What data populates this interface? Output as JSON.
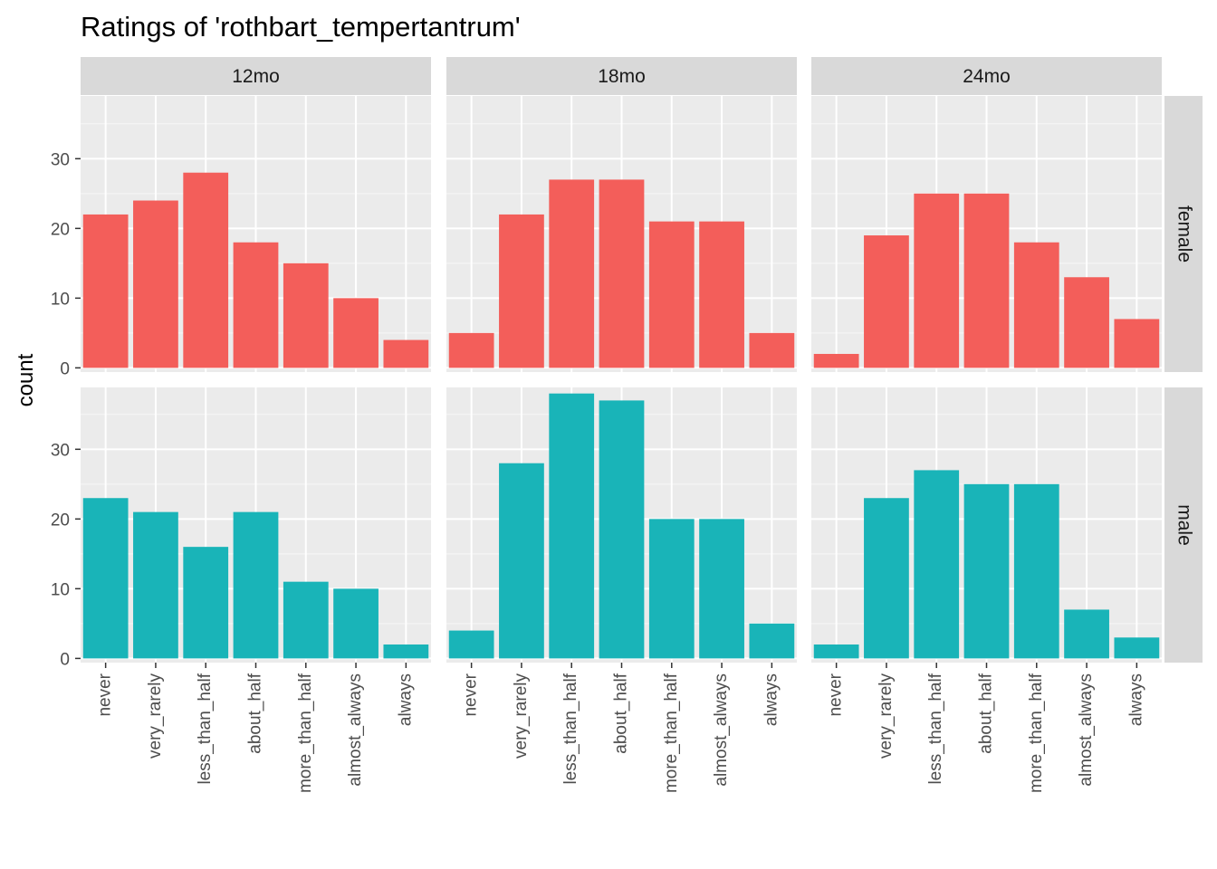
{
  "chart_data": {
    "type": "bar",
    "title": "Ratings of 'rothbart_tempertantrum'",
    "ylabel": "count",
    "xlabel": "",
    "ylim": [
      0,
      39
    ],
    "yticks": [
      0,
      10,
      20,
      30
    ],
    "grid": true,
    "categories": [
      "never",
      "very_rarely",
      "less_than_half",
      "about_half",
      "more_than_half",
      "almost_always",
      "always"
    ],
    "columns": [
      "12mo",
      "18mo",
      "24mo"
    ],
    "rows": [
      "female",
      "male"
    ],
    "row_colors": {
      "female": "#F35E5A",
      "male": "#19B4B8"
    },
    "panels": [
      {
        "column": "12mo",
        "row": "female",
        "values": [
          22,
          24,
          28,
          18,
          15,
          10,
          4
        ]
      },
      {
        "column": "18mo",
        "row": "female",
        "values": [
          5,
          22,
          27,
          27,
          21,
          21,
          5
        ]
      },
      {
        "column": "24mo",
        "row": "female",
        "values": [
          2,
          19,
          25,
          25,
          18,
          13,
          7
        ]
      },
      {
        "column": "12mo",
        "row": "male",
        "values": [
          23,
          21,
          16,
          21,
          11,
          10,
          2
        ]
      },
      {
        "column": "18mo",
        "row": "male",
        "values": [
          4,
          28,
          38,
          37,
          20,
          20,
          5
        ]
      },
      {
        "column": "24mo",
        "row": "male",
        "values": [
          2,
          23,
          27,
          25,
          25,
          7,
          3
        ]
      }
    ]
  }
}
